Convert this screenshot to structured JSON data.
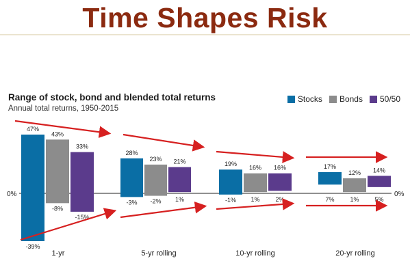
{
  "slide": {
    "title": "Time Shapes Risk"
  },
  "chart_data": {
    "type": "bar",
    "title": "Range of stock, bond and blended total returns",
    "subtitle": "Annual total returns, 1950-2015",
    "categories": [
      "1-yr",
      "5-yr rolling",
      "10-yr rolling",
      "20-yr rolling"
    ],
    "zero_label_left": "0%",
    "zero_label_right": "0%",
    "legend_position": "top-right",
    "ylim": [
      -39,
      47
    ],
    "series": [
      {
        "name": "Stocks",
        "color": "#0a6ea5",
        "high": [
          47,
          28,
          19,
          17
        ],
        "low": [
          -39,
          -3,
          -1,
          7
        ],
        "high_labels": [
          "47%",
          "28%",
          "19%",
          "17%"
        ],
        "low_labels": [
          "-39%",
          "-3%",
          "-1%",
          "7%"
        ]
      },
      {
        "name": "Bonds",
        "color": "#8c8c8c",
        "high": [
          43,
          23,
          16,
          12
        ],
        "low": [
          -8,
          -2,
          1,
          1
        ],
        "high_labels": [
          "43%",
          "23%",
          "16%",
          "12%"
        ],
        "low_labels": [
          "-8%",
          "-2%",
          "1%",
          "1%"
        ]
      },
      {
        "name": "50/50",
        "color": "#5b3b8c",
        "high": [
          33,
          21,
          16,
          14
        ],
        "low": [
          -15,
          1,
          2,
          5
        ],
        "high_labels": [
          "33%",
          "21%",
          "16%",
          "14%"
        ],
        "low_labels": [
          "-15%",
          "1%",
          "2%",
          "5%"
        ]
      }
    ],
    "annotation_color": "#d62020"
  }
}
